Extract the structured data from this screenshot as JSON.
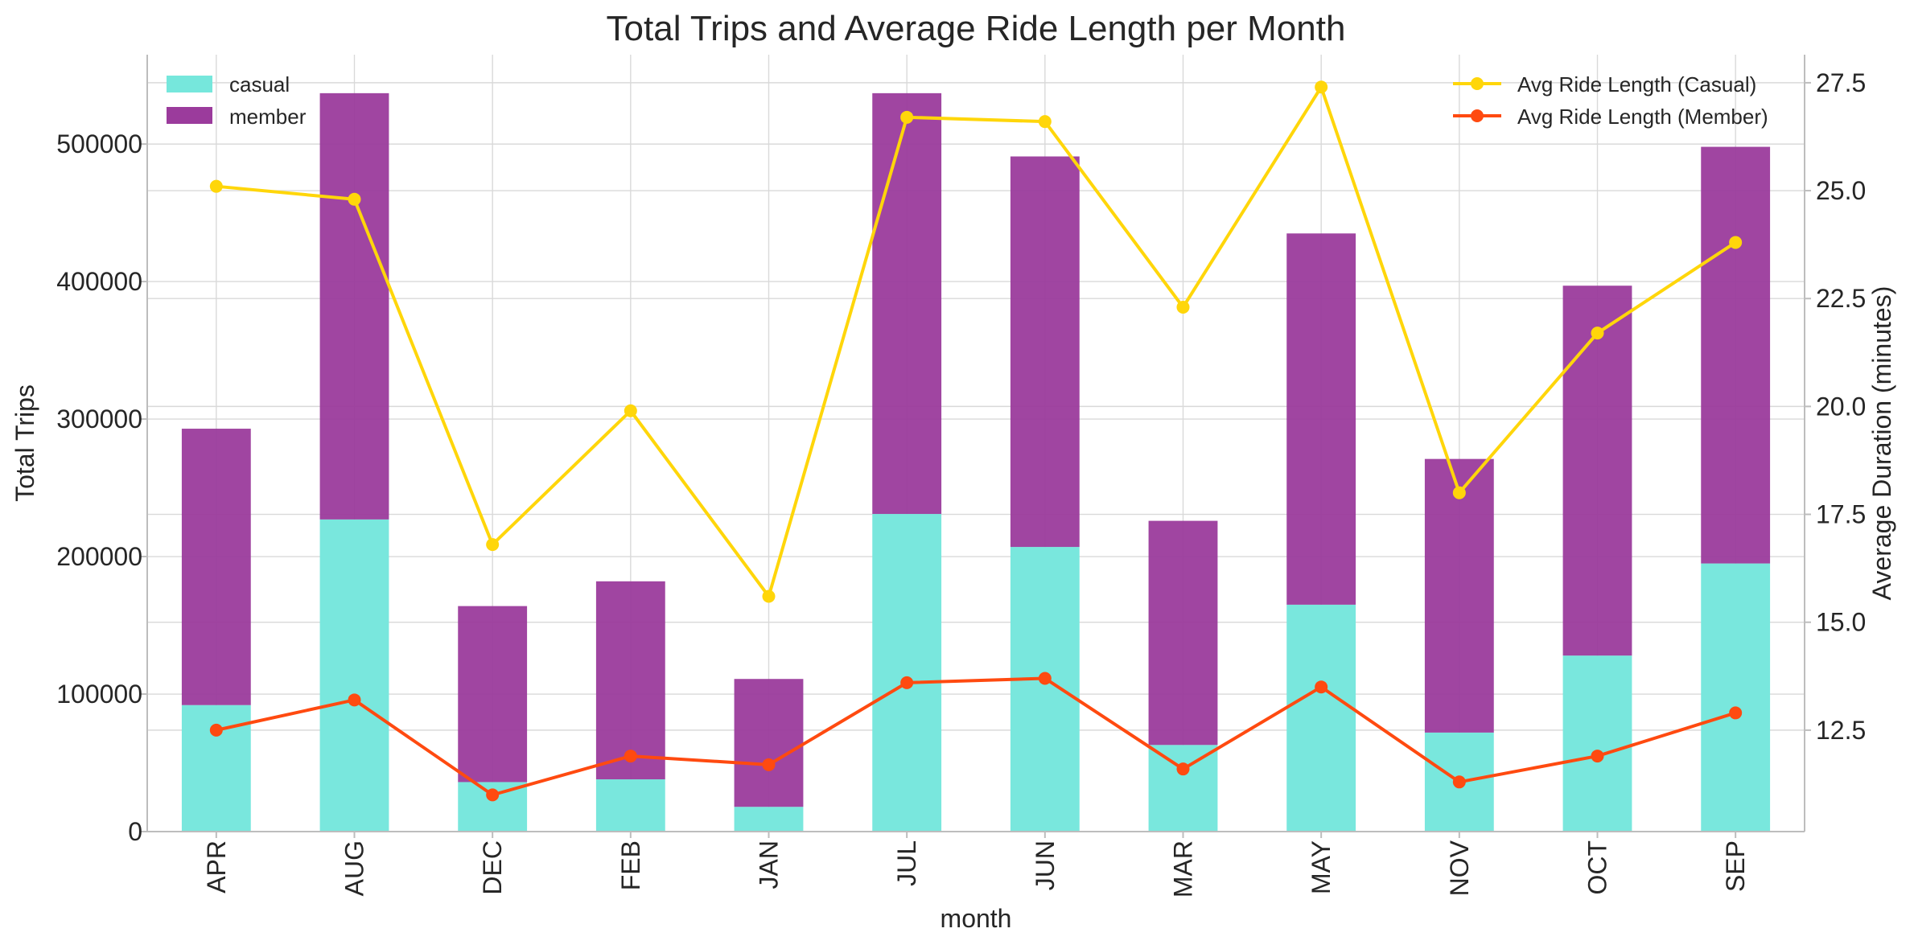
{
  "chart_data": {
    "type": "bar",
    "title": "Total Trips and Average Ride Length per Month",
    "xlabel": "month",
    "ylabel": "Total Trips",
    "y2label": "Average Duration (minutes)",
    "categories": [
      "APR",
      "AUG",
      "DEC",
      "FEB",
      "JAN",
      "JUL",
      "JUN",
      "MAR",
      "MAY",
      "NOV",
      "OCT",
      "SEP"
    ],
    "stacked": true,
    "ylim": [
      0,
      565000
    ],
    "y_ticks": [
      0,
      100000,
      200000,
      300000,
      400000,
      500000
    ],
    "y_tick_labels": [
      "0",
      "100000",
      "200000",
      "300000",
      "400000",
      "500000"
    ],
    "y2lim": [
      10.15,
      28.15
    ],
    "y2_ticks": [
      12.5,
      15.0,
      17.5,
      20.0,
      22.5,
      25.0,
      27.5
    ],
    "y2_tick_labels": [
      "12.5",
      "15.0",
      "17.5",
      "20.0",
      "22.5",
      "25.0",
      "27.5"
    ],
    "grid": true,
    "series": [
      {
        "name": "casual",
        "kind": "bar",
        "color": "#76e7dc",
        "values": [
          92000,
          227000,
          36000,
          38000,
          18000,
          231000,
          207000,
          63000,
          165000,
          72000,
          128000,
          195000
        ]
      },
      {
        "name": "member",
        "kind": "bar",
        "color": "#9b3b9c",
        "values": [
          201000,
          310000,
          128000,
          144000,
          93000,
          306000,
          284000,
          163000,
          270000,
          199000,
          269000,
          303000
        ]
      },
      {
        "name": "Avg Ride Length (Casual)",
        "kind": "line",
        "axis": "y2",
        "color": "#ffd60a",
        "values": [
          25.1,
          24.8,
          16.8,
          19.9,
          15.6,
          26.7,
          26.6,
          22.3,
          27.4,
          18.0,
          21.7,
          23.8
        ]
      },
      {
        "name": "Avg Ride Length (Member)",
        "kind": "line",
        "axis": "y2",
        "color": "#ff4a10",
        "values": [
          12.5,
          13.2,
          11.0,
          11.9,
          11.7,
          13.6,
          13.7,
          11.6,
          13.5,
          11.3,
          11.9,
          12.9
        ]
      }
    ],
    "legend_bars_placement": "top-left",
    "legend_lines_placement": "top-right"
  }
}
